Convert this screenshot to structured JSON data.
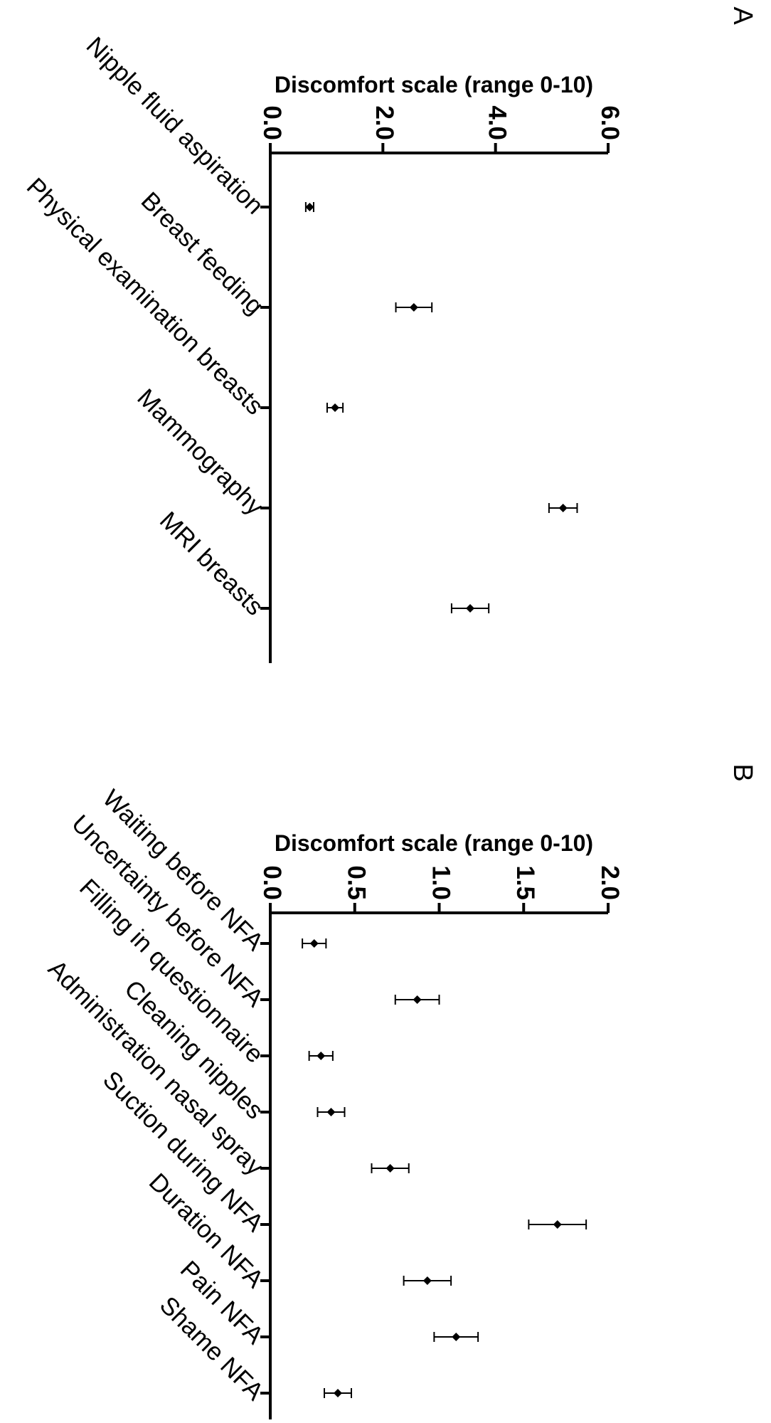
{
  "chart_data": [
    {
      "panel": "A",
      "type": "scatter",
      "ylabel": "Discomfort scale (range 0-10)",
      "ylim": [
        0,
        6
      ],
      "yticks": [
        "0.0",
        "2.0",
        "4.0",
        "6.0"
      ],
      "categories": [
        "Nipple fluid aspiration",
        "Breast feeding",
        "Physical examination breasts",
        "Mammography",
        "MRI breasts"
      ],
      "values": [
        0.7,
        2.55,
        1.15,
        5.2,
        3.55
      ],
      "error": [
        0.07,
        0.32,
        0.14,
        0.25,
        0.33
      ]
    },
    {
      "panel": "B",
      "type": "scatter",
      "ylabel": "Discomfort scale (range 0-10)",
      "ylim": [
        0,
        2
      ],
      "yticks": [
        "0.0",
        "0.5",
        "1.0",
        "1.5",
        "2.0"
      ],
      "categories": [
        "Waiting before NFA",
        "Uncertainty before NFA",
        "Filling in questionnaire",
        "Cleaning nipples",
        "Administration nasal spray",
        "Suction during NFA",
        "Duration NFA",
        "Pain NFA",
        "Shame NFA"
      ],
      "values": [
        0.26,
        0.87,
        0.3,
        0.36,
        0.71,
        1.7,
        0.93,
        1.1,
        0.4
      ],
      "error": [
        0.07,
        0.13,
        0.07,
        0.08,
        0.11,
        0.17,
        0.14,
        0.13,
        0.08
      ]
    }
  ]
}
